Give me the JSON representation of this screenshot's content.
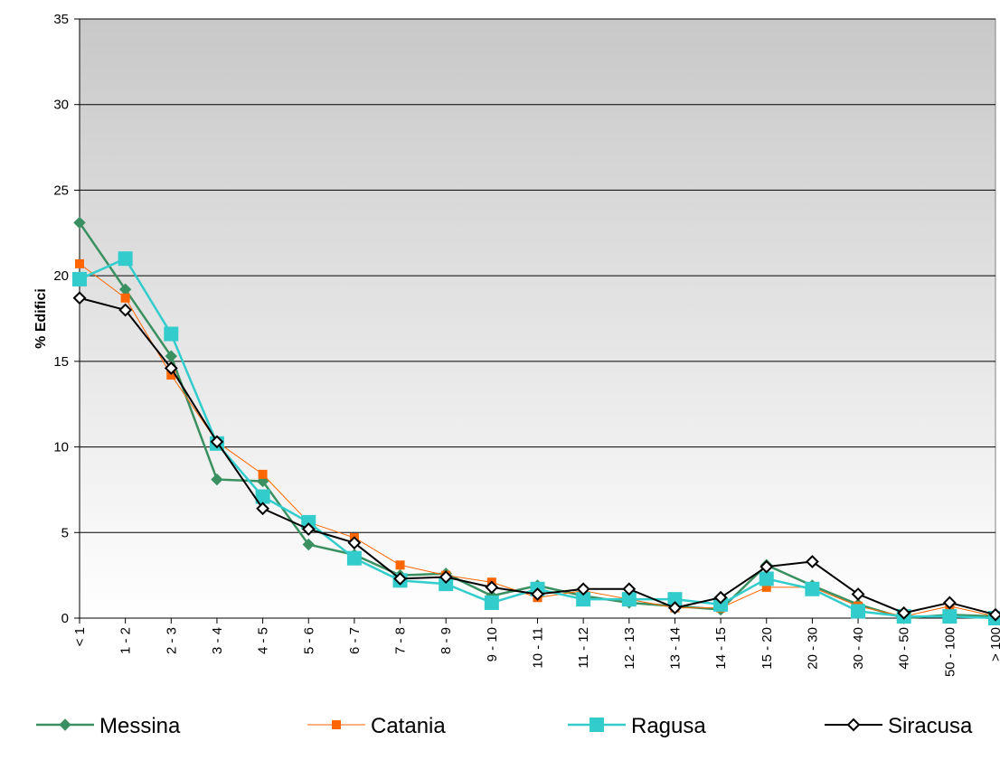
{
  "chart_data": {
    "type": "line",
    "title": "",
    "xlabel": "",
    "ylabel": "% Edifici",
    "ylim": [
      0,
      35
    ],
    "yticks": [
      0,
      5,
      10,
      15,
      20,
      25,
      30,
      35
    ],
    "grid": true,
    "legend_position": "bottom",
    "categories": [
      "< 1",
      "1 - 2",
      "2 - 3",
      "3 - 4",
      "4 - 5",
      "5 - 6",
      "6 - 7",
      "7 - 8",
      "8 - 9",
      "9 - 10",
      "10 - 11",
      "11 - 12",
      "12 - 13",
      "13 - 14",
      "14 - 15",
      "15 - 20",
      "20 - 30",
      "30 - 40",
      "40 - 50",
      "50 - 100",
      "> 100"
    ],
    "series": [
      {
        "name": "Messina",
        "color": "#3a9060",
        "marker": "diamond-filled",
        "values": [
          23.1,
          19.2,
          15.3,
          8.1,
          8.0,
          4.3,
          3.7,
          2.5,
          2.6,
          1.3,
          1.9,
          1.3,
          0.9,
          0.7,
          0.5,
          3.1,
          1.9,
          0.8,
          0.0,
          0.2,
          0.1
        ]
      },
      {
        "name": "Catania",
        "color": "#ff6600",
        "marker": "square-small",
        "values": [
          20.7,
          18.7,
          14.2,
          10.3,
          8.4,
          5.6,
          4.7,
          3.1,
          2.5,
          2.1,
          1.2,
          1.6,
          1.1,
          0.6,
          0.6,
          1.8,
          1.8,
          0.7,
          0.1,
          0.7,
          0.1
        ]
      },
      {
        "name": "Ragusa",
        "color": "#33cccc",
        "marker": "square",
        "values": [
          19.8,
          21.0,
          16.6,
          10.2,
          7.1,
          5.6,
          3.5,
          2.2,
          2.0,
          0.9,
          1.7,
          1.1,
          1.1,
          1.1,
          0.8,
          2.3,
          1.7,
          0.4,
          0.1,
          0.1,
          0.0
        ]
      },
      {
        "name": "Siracusa",
        "color": "#000000",
        "marker": "diamond-open",
        "values": [
          18.7,
          18.0,
          14.6,
          10.3,
          6.4,
          5.2,
          4.4,
          2.3,
          2.4,
          1.8,
          1.4,
          1.7,
          1.7,
          0.6,
          1.2,
          3.0,
          3.3,
          1.4,
          0.3,
          0.9,
          0.2
        ]
      }
    ]
  }
}
